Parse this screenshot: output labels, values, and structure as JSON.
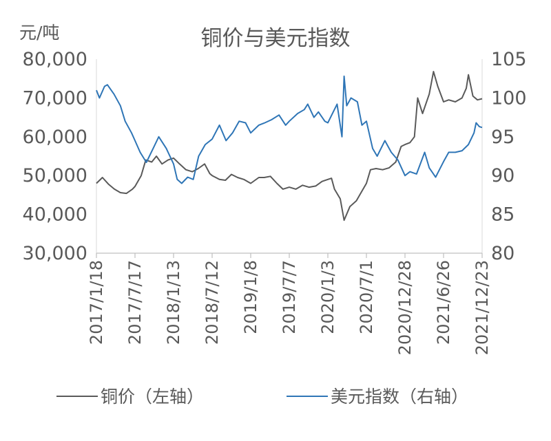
{
  "chart_data": {
    "type": "line",
    "title": "铜价与美元指数",
    "left_axis_unit": "元/吨",
    "left_axis": {
      "ylim": [
        30000,
        80000
      ],
      "ticks": [
        "30,000",
        "40,000",
        "50,000",
        "60,000",
        "70,000",
        "80,000"
      ]
    },
    "right_axis": {
      "ylim": [
        80,
        105
      ],
      "ticks": [
        "80",
        "85",
        "90",
        "95",
        "100",
        "105"
      ]
    },
    "x_tick_labels": [
      "2017/1/18",
      "2017/7/17",
      "2018/1/13",
      "2018/7/12",
      "2019/1/8",
      "2019/7/7",
      "2020/1/3",
      "2020/7/1",
      "2020/12/28",
      "2021/6/26",
      "2021/12/23"
    ],
    "x_range": [
      "2017/1/18",
      "2021/12/23"
    ],
    "legend_position": "bottom",
    "series": [
      {
        "name": "铜价（左轴）",
        "axis": "left",
        "color": "#595959",
        "points": [
          [
            "2017/1/18",
            48000
          ],
          [
            "2017/2/15",
            49500
          ],
          [
            "2017/3/15",
            47800
          ],
          [
            "2017/4/12",
            46500
          ],
          [
            "2017/5/10",
            45600
          ],
          [
            "2017/6/7",
            45400
          ],
          [
            "2017/7/5",
            46500
          ],
          [
            "2017/7/17",
            47200
          ],
          [
            "2017/8/15",
            50000
          ],
          [
            "2017/9/5",
            54000
          ],
          [
            "2017/10/3",
            53500
          ],
          [
            "2017/10/25",
            55000
          ],
          [
            "2017/11/20",
            53000
          ],
          [
            "2017/12/18",
            54000
          ],
          [
            "2018/1/13",
            54500
          ],
          [
            "2018/2/10",
            53000
          ],
          [
            "2018/3/12",
            51500
          ],
          [
            "2018/4/10",
            51000
          ],
          [
            "2018/5/8",
            51800
          ],
          [
            "2018/6/7",
            53000
          ],
          [
            "2018/7/1",
            50500
          ],
          [
            "2018/7/12",
            50000
          ],
          [
            "2018/8/15",
            49000
          ],
          [
            "2018/9/12",
            48800
          ],
          [
            "2018/10/10",
            50300
          ],
          [
            "2018/11/8",
            49500
          ],
          [
            "2018/12/7",
            49000
          ],
          [
            "2019/1/8",
            48000
          ],
          [
            "2019/2/15",
            49500
          ],
          [
            "2019/3/12",
            49500
          ],
          [
            "2019/4/10",
            49800
          ],
          [
            "2019/5/10",
            48000
          ],
          [
            "2019/6/7",
            46500
          ],
          [
            "2019/7/7",
            47000
          ],
          [
            "2019/8/7",
            46500
          ],
          [
            "2019/9/7",
            47500
          ],
          [
            "2019/10/7",
            47000
          ],
          [
            "2019/11/7",
            47300
          ],
          [
            "2019/12/7",
            48500
          ],
          [
            "2020/1/3",
            49000
          ],
          [
            "2020/1/20",
            49300
          ],
          [
            "2020/2/3",
            46500
          ],
          [
            "2020/3/1",
            44000
          ],
          [
            "2020/3/19",
            38500
          ],
          [
            "2020/4/15",
            42000
          ],
          [
            "2020/5/15",
            43500
          ],
          [
            "2020/6/10",
            46000
          ],
          [
            "2020/7/1",
            48000
          ],
          [
            "2020/7/20",
            51500
          ],
          [
            "2020/8/15",
            51800
          ],
          [
            "2020/9/15",
            51500
          ],
          [
            "2020/10/15",
            52000
          ],
          [
            "2020/11/15",
            53500
          ],
          [
            "2020/12/10",
            57500
          ],
          [
            "2020/12/28",
            58000
          ],
          [
            "2021/1/20",
            58500
          ],
          [
            "2021/2/10",
            60000
          ],
          [
            "2021/2/25",
            70000
          ],
          [
            "2021/3/20",
            66000
          ],
          [
            "2021/4/20",
            71000
          ],
          [
            "2021/5/10",
            76800
          ],
          [
            "2021/5/30",
            73000
          ],
          [
            "2021/6/26",
            69000
          ],
          [
            "2021/7/20",
            69500
          ],
          [
            "2021/8/20",
            69000
          ],
          [
            "2021/9/20",
            70000
          ],
          [
            "2021/10/10",
            72500
          ],
          [
            "2021/10/20",
            76000
          ],
          [
            "2021/11/10",
            70500
          ],
          [
            "2021/12/1",
            69500
          ],
          [
            "2021/12/23",
            69800
          ]
        ]
      },
      {
        "name": "美元指数（右轴）",
        "axis": "right",
        "color": "#2E75B6",
        "points": [
          [
            "2017/1/18",
            101.0
          ],
          [
            "2017/2/1",
            100.0
          ],
          [
            "2017/2/25",
            101.5
          ],
          [
            "2017/3/10",
            101.7
          ],
          [
            "2017/4/10",
            100.5
          ],
          [
            "2017/5/10",
            99.0
          ],
          [
            "2017/6/1",
            97.0
          ],
          [
            "2017/7/1",
            95.5
          ],
          [
            "2017/7/17",
            94.5
          ],
          [
            "2017/8/10",
            93.0
          ],
          [
            "2017/9/8",
            91.7
          ],
          [
            "2017/10/10",
            93.5
          ],
          [
            "2017/11/5",
            95.0
          ],
          [
            "2017/12/10",
            93.5
          ],
          [
            "2018/1/13",
            91.5
          ],
          [
            "2018/1/30",
            89.5
          ],
          [
            "2018/2/20",
            89.0
          ],
          [
            "2018/3/20",
            89.8
          ],
          [
            "2018/4/15",
            89.5
          ],
          [
            "2018/5/10",
            92.5
          ],
          [
            "2018/6/10",
            94.0
          ],
          [
            "2018/7/12",
            94.7
          ],
          [
            "2018/8/15",
            96.5
          ],
          [
            "2018/9/15",
            94.5
          ],
          [
            "2018/10/15",
            95.5
          ],
          [
            "2018/11/15",
            97.0
          ],
          [
            "2018/12/15",
            96.8
          ],
          [
            "2019/1/8",
            95.5
          ],
          [
            "2019/2/15",
            96.5
          ],
          [
            "2019/3/15",
            96.8
          ],
          [
            "2019/4/15",
            97.2
          ],
          [
            "2019/5/20",
            97.8
          ],
          [
            "2019/6/20",
            96.5
          ],
          [
            "2019/7/7",
            97.0
          ],
          [
            "2019/8/15",
            98.0
          ],
          [
            "2019/9/15",
            98.5
          ],
          [
            "2019/10/1",
            99.2
          ],
          [
            "2019/10/30",
            97.5
          ],
          [
            "2019/11/20",
            98.2
          ],
          [
            "2019/12/20",
            97.0
          ],
          [
            "2020/1/3",
            96.8
          ],
          [
            "2020/2/15",
            99.2
          ],
          [
            "2020/3/9",
            95.0
          ],
          [
            "2020/3/19",
            102.8
          ],
          [
            "2020/3/31",
            99.0
          ],
          [
            "2020/4/20",
            100.0
          ],
          [
            "2020/5/20",
            99.5
          ],
          [
            "2020/6/10",
            96.5
          ],
          [
            "2020/7/1",
            97.0
          ],
          [
            "2020/7/30",
            93.5
          ],
          [
            "2020/8/20",
            92.5
          ],
          [
            "2020/9/25",
            94.5
          ],
          [
            "2020/10/25",
            93.0
          ],
          [
            "2020/11/25",
            92.0
          ],
          [
            "2020/12/28",
            90.0
          ],
          [
            "2021/1/20",
            90.5
          ],
          [
            "2021/2/20",
            90.2
          ],
          [
            "2021/3/30",
            93.0
          ],
          [
            "2021/4/20",
            91.0
          ],
          [
            "2021/5/20",
            89.8
          ],
          [
            "2021/6/26",
            91.8
          ],
          [
            "2021/7/20",
            93.0
          ],
          [
            "2021/8/20",
            93.0
          ],
          [
            "2021/9/20",
            93.2
          ],
          [
            "2021/10/20",
            94.0
          ],
          [
            "2021/11/15",
            95.5
          ],
          [
            "2021/11/25",
            96.8
          ],
          [
            "2021/12/10",
            96.3
          ],
          [
            "2021/12/23",
            96.2
          ]
        ]
      }
    ]
  }
}
